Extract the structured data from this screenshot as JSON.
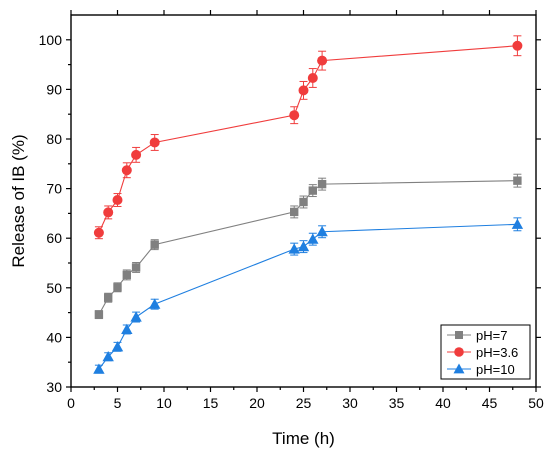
{
  "chart_data": {
    "type": "line",
    "xlabel": "Time (h)",
    "ylabel": "Release of IB (%)",
    "xlim": [
      0,
      50
    ],
    "ylim": [
      30,
      105
    ],
    "xticks": [
      0,
      5,
      10,
      15,
      20,
      25,
      30,
      35,
      40,
      45,
      50
    ],
    "yticks": [
      30,
      40,
      50,
      60,
      70,
      80,
      90,
      100
    ],
    "legend_position": "bottom-right",
    "grid": false,
    "series": [
      {
        "name": "pH=7",
        "color": "#808080",
        "marker": "square",
        "x": [
          3,
          4,
          5,
          6,
          7,
          9,
          24,
          25,
          26,
          27,
          48
        ],
        "y": [
          44.6,
          48.0,
          50.1,
          52.6,
          54.1,
          58.7,
          65.3,
          67.3,
          69.6,
          70.9,
          71.6
        ],
        "err": [
          0.8,
          0.9,
          0.9,
          1.0,
          1.0,
          1.0,
          1.2,
          1.2,
          1.2,
          1.2,
          1.3
        ]
      },
      {
        "name": "pH=3.6",
        "color": "#f03c3c",
        "marker": "circle",
        "x": [
          3,
          4,
          5,
          6,
          7,
          9,
          24,
          25,
          26,
          27,
          48
        ],
        "y": [
          61.1,
          65.2,
          67.7,
          73.7,
          76.8,
          79.3,
          84.8,
          89.8,
          92.3,
          95.8,
          98.8
        ],
        "err": [
          1.2,
          1.3,
          1.3,
          1.5,
          1.5,
          1.6,
          1.7,
          1.8,
          1.9,
          1.9,
          2.0
        ]
      },
      {
        "name": "pH=10",
        "color": "#1f7fe0",
        "marker": "triangle",
        "x": [
          3,
          4,
          5,
          6,
          7,
          9,
          24,
          25,
          26,
          27,
          48
        ],
        "y": [
          33.6,
          36.1,
          38.1,
          41.6,
          44.1,
          46.7,
          57.8,
          58.3,
          59.8,
          61.3,
          62.8
        ],
        "err": [
          0.8,
          0.8,
          0.9,
          0.9,
          1.0,
          1.0,
          1.2,
          1.2,
          1.2,
          1.2,
          1.3
        ]
      }
    ]
  }
}
